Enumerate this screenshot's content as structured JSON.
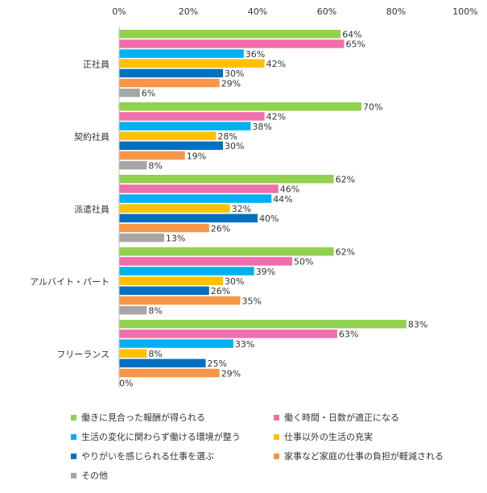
{
  "chart_data": {
    "type": "bar",
    "orientation": "horizontal",
    "xlim": [
      0,
      100
    ],
    "x_ticks": [
      "0%",
      "20%",
      "40%",
      "60%",
      "80%",
      "100%"
    ],
    "categories": [
      "正社員",
      "契約社員",
      "派遣社員",
      "アルバイト・パート",
      "フリーランス"
    ],
    "series": [
      {
        "name": "働きに見合った報酬が得られる",
        "color": "#92d050",
        "values": [
          64,
          70,
          62,
          62,
          83
        ]
      },
      {
        "name": "働く時間・日数が適正になる",
        "color": "#f06eaa",
        "values": [
          65,
          42,
          46,
          50,
          63
        ]
      },
      {
        "name": "生活の変化に関わらず働ける環境が整う",
        "color": "#00b0f0",
        "values": [
          36,
          38,
          44,
          39,
          33
        ]
      },
      {
        "name": "仕事以外の生活の充実",
        "color": "#ffc000",
        "values": [
          42,
          28,
          32,
          30,
          8
        ]
      },
      {
        "name": "やりがいを感じられる仕事を選ぶ",
        "color": "#0070c0",
        "values": [
          30,
          30,
          40,
          26,
          25
        ]
      },
      {
        "name": "家事など家庭の仕事の負担が軽減される",
        "color": "#f79646",
        "values": [
          29,
          19,
          26,
          35,
          29
        ]
      },
      {
        "name": "その他",
        "color": "#a6a6a6",
        "values": [
          6,
          8,
          13,
          8,
          0
        ]
      }
    ],
    "value_suffix": "%",
    "legend_position": "bottom"
  }
}
